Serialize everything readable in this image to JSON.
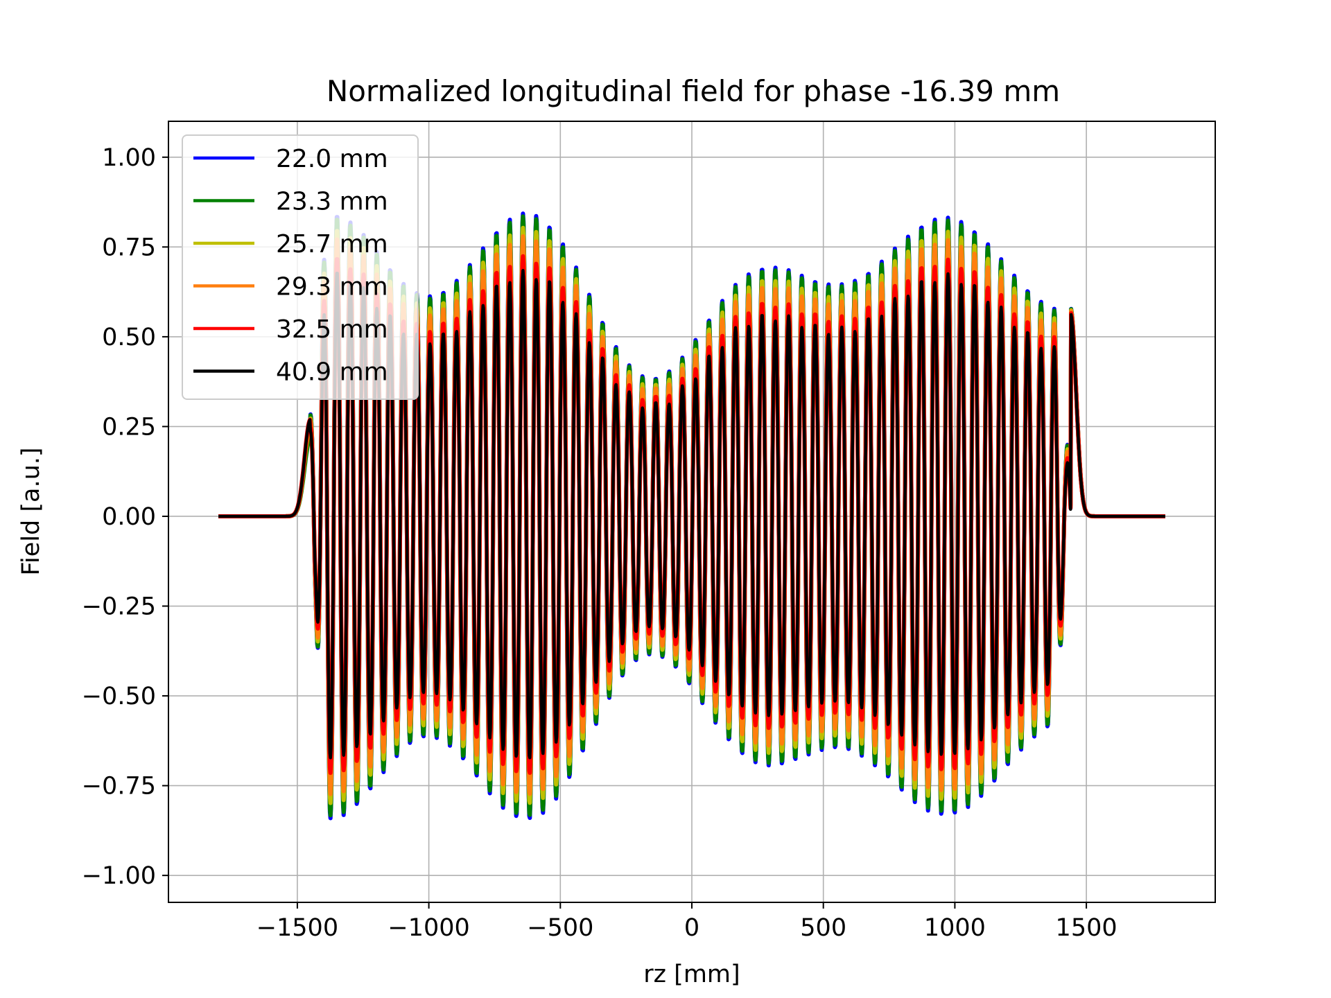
{
  "chart_data": {
    "type": "line",
    "title": "Normalized longitudinal field for phase -16.39 mm",
    "xlabel": "rz [mm]",
    "ylabel": "Field [a.u.]",
    "xlim": [
      -1990,
      1990
    ],
    "ylim": [
      -1.075,
      1.1
    ],
    "x_ticks": [
      -1500,
      -1000,
      -500,
      0,
      500,
      1000,
      1500
    ],
    "x_tick_labels": [
      "−1500",
      "−1000",
      "−500",
      "0",
      "500",
      "1000",
      "1500"
    ],
    "y_ticks": [
      1.0,
      0.75,
      0.5,
      0.25,
      0.0,
      -0.25,
      -0.5,
      -0.75,
      -1.0
    ],
    "y_tick_labels": [
      "1.00",
      "0.75",
      "0.50",
      "0.25",
      "0.00",
      "−0.25",
      "−0.50",
      "−0.75",
      "−1.00"
    ],
    "grid": true,
    "legend_position": "upper-left",
    "x_range": [
      -1800,
      1800
    ],
    "field_extent": [
      -1450,
      1440
    ],
    "approx_peak_positions": [
      -1450,
      -1345,
      -1300,
      -1250,
      -1200,
      -1150,
      -1110,
      -1055,
      -1000,
      -960,
      -920,
      -870,
      -815,
      -765,
      -715,
      -660,
      -615,
      -565,
      -515,
      -465,
      -420,
      -365,
      -320,
      -270,
      -220,
      -165,
      -120,
      -70,
      -20,
      30,
      80,
      125,
      175,
      225,
      275,
      325,
      370,
      420,
      470,
      520,
      570,
      615,
      665,
      720,
      770,
      820,
      870,
      920,
      975,
      1020,
      1070,
      1120,
      1170,
      1215,
      1265,
      1310,
      1380,
      1440
    ],
    "series": [
      {
        "name": "22.0 mm",
        "color": "#0000ff",
        "amplitude_scale": 1.0,
        "edge_peak": 0.24
      },
      {
        "name": "23.3 mm",
        "color": "#008000",
        "amplitude_scale": 0.99,
        "edge_peak": 0.22
      },
      {
        "name": "25.7 mm",
        "color": "#bfbf00",
        "amplitude_scale": 0.95,
        "edge_peak": 0.25
      },
      {
        "name": "29.3 mm",
        "color": "#ff7f0e",
        "amplitude_scale": 0.92,
        "edge_peak": 0.26
      },
      {
        "name": "32.5 mm",
        "color": "#ff0000",
        "amplitude_scale": 0.85,
        "edge_peak": 0.27
      },
      {
        "name": "40.9 mm",
        "color": "#000000",
        "amplitude_scale": 0.8,
        "edge_peak": 0.27
      }
    ]
  }
}
